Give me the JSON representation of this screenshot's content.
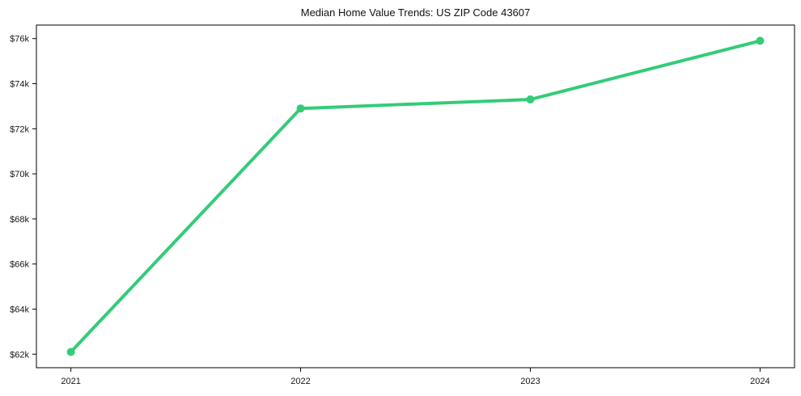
{
  "chart_data": {
    "type": "line",
    "title": "Median Home Value Trends: US ZIP Code 43607",
    "xlabel": "",
    "ylabel": "",
    "x": [
      2021,
      2022,
      2023,
      2024
    ],
    "x_tick_labels": [
      "2021",
      "2022",
      "2023",
      "2024"
    ],
    "values": [
      62100,
      72900,
      73300,
      75900
    ],
    "y_ticks": [
      62000,
      64000,
      66000,
      68000,
      70000,
      72000,
      74000,
      76000
    ],
    "y_tick_labels": [
      "$62k",
      "$64k",
      "$66k",
      "$68k",
      "$70k",
      "$72k",
      "$74k",
      "$76k"
    ],
    "xlim": [
      2020.85,
      2024.15
    ],
    "ylim": [
      61400,
      76600
    ],
    "grid": false,
    "legend": "none",
    "line_color": "#33cc78",
    "frame_color": "#000000",
    "background_color": "#ffffff",
    "marker": "circle"
  }
}
